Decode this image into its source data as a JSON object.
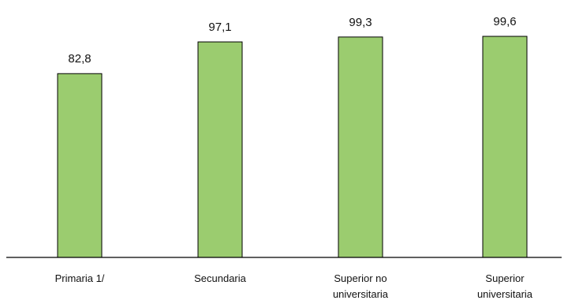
{
  "chart_data": {
    "type": "bar",
    "categories": [
      [
        "Primaria 1/"
      ],
      [
        "Secundaria"
      ],
      [
        "Superior no",
        "universitaria"
      ],
      [
        "Superior",
        "universitaria"
      ]
    ],
    "values": [
      82.8,
      97.1,
      99.3,
      99.6
    ],
    "data_labels": [
      "82,8",
      "97,1",
      "99,3",
      "99,6"
    ],
    "title": "",
    "xlabel": "",
    "ylabel": "",
    "ylim": [
      0,
      100
    ],
    "grid": false,
    "legend": "none",
    "colors": {
      "bar": "#9bcc6f",
      "bar_border": "#000000"
    }
  }
}
